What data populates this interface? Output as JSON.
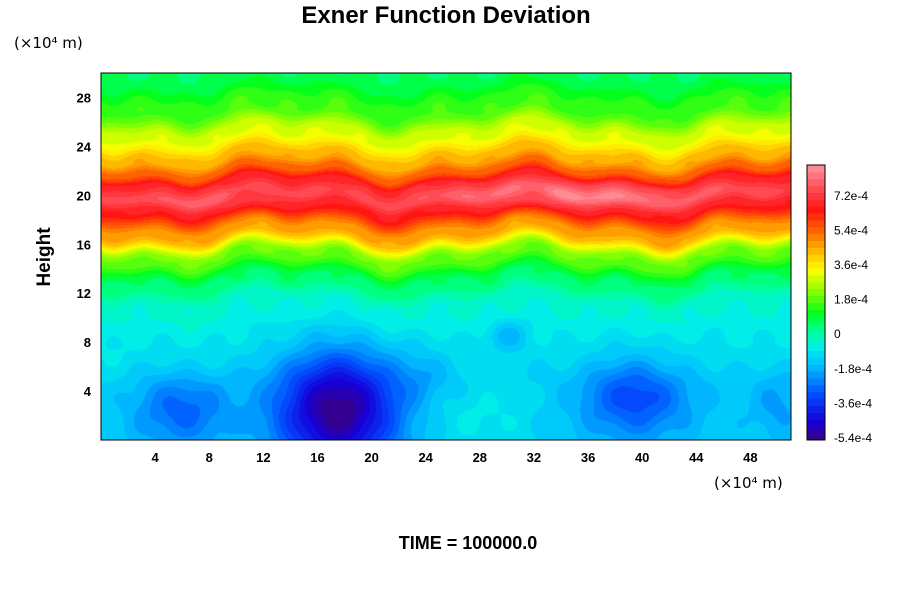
{
  "chart_data": {
    "type": "heatmap",
    "title": "Exner Function Deviation",
    "xlabel": "",
    "ylabel": "Height",
    "x_unit": "(×10⁴ m)",
    "y_unit": "(×10⁴ m)",
    "xlim": [
      0,
      51
    ],
    "ylim": [
      0,
      30
    ],
    "x_ticks": [
      4,
      8,
      12,
      16,
      20,
      24,
      28,
      32,
      36,
      40,
      44,
      48
    ],
    "y_ticks": [
      4,
      8,
      12,
      16,
      20,
      24,
      28
    ],
    "grid": false,
    "colorbar": {
      "min": -0.00055,
      "max": 0.00088,
      "ticks": [
        {
          "value": -0.00054,
          "label": "-5.4e-4"
        },
        {
          "value": -0.00036,
          "label": "-3.6e-4"
        },
        {
          "value": -0.00018,
          "label": "-1.8e-4"
        },
        {
          "value": 0,
          "label": "0"
        },
        {
          "value": 0.00018,
          "label": "1.8e-4"
        },
        {
          "value": 0.00036,
          "label": "3.6e-4"
        },
        {
          "value": 0.00054,
          "label": "5.4e-4"
        },
        {
          "value": 0.00072,
          "label": "7.2e-4"
        }
      ]
    },
    "field": {
      "vertical_profile": [
        {
          "height": 0,
          "value": -0.00013
        },
        {
          "height": 4,
          "value": -0.00012
        },
        {
          "height": 8,
          "value": -8e-05
        },
        {
          "height": 11,
          "value": -4e-05
        },
        {
          "height": 13,
          "value": 5e-05
        },
        {
          "height": 15,
          "value": 0.0002
        },
        {
          "height": 17,
          "value": 0.00046
        },
        {
          "height": 19,
          "value": 0.00066
        },
        {
          "height": 20,
          "value": 0.00074
        },
        {
          "height": 21,
          "value": 0.00068
        },
        {
          "height": 22,
          "value": 0.00054
        },
        {
          "height": 23,
          "value": 0.00044
        },
        {
          "height": 25,
          "value": 0.0003
        },
        {
          "height": 27,
          "value": 0.00016
        },
        {
          "height": 30,
          "value": 6e-05
        }
      ],
      "anomalies": [
        {
          "x": 17.5,
          "y": 2.5,
          "amplitude": -0.00042,
          "sx": 3.2,
          "sy": 3.4
        },
        {
          "x": 6,
          "y": 2.5,
          "amplitude": -0.00016,
          "sx": 2.6,
          "sy": 2.2
        },
        {
          "x": 39.5,
          "y": 3.5,
          "amplitude": -0.0002,
          "sx": 3.0,
          "sy": 2.4
        },
        {
          "x": 30,
          "y": 8.5,
          "amplitude": -0.0001,
          "sx": 1.0,
          "sy": 0.9
        },
        {
          "x": 50,
          "y": 3,
          "amplitude": -8e-05,
          "sx": 1.5,
          "sy": 2.0
        },
        {
          "x": 23.5,
          "y": 5.5,
          "amplitude": -6e-05,
          "sx": 2.0,
          "sy": 1.6
        },
        {
          "x": 35,
          "y": 20,
          "amplitude": 0.00012,
          "sx": 7.0,
          "sy": 0.8
        },
        {
          "x": 9,
          "y": 19.5,
          "amplitude": 6e-05,
          "sx": 4.0,
          "sy": 0.7
        },
        {
          "x": 28,
          "y": 1.5,
          "amplitude": 5e-05,
          "sx": 3.0,
          "sy": 2.0
        }
      ]
    }
  },
  "footer": {
    "time_label": "TIME = 100000.0"
  }
}
